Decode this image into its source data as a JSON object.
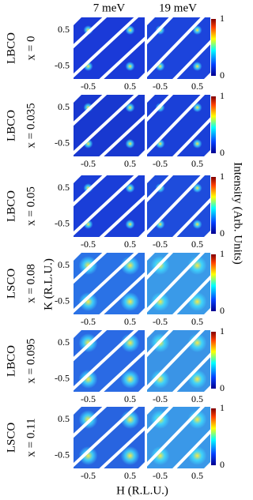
{
  "columns": [
    "7 meV",
    "19 meV"
  ],
  "rows": [
    {
      "material": "LBCO",
      "doping": "x = 0"
    },
    {
      "material": "LBCO",
      "doping": "x = 0.035"
    },
    {
      "material": "LBCO",
      "doping": "x = 0.05"
    },
    {
      "material": "LSCO",
      "doping": "x = 0.08"
    },
    {
      "material": "LBCO",
      "doping": "x = 0.095"
    },
    {
      "material": "LSCO",
      "doping": "x = 0.11"
    }
  ],
  "hticks": [
    -0.5,
    0.5
  ],
  "kticks": [
    -0.5,
    0.5
  ],
  "hlim": [
    -0.85,
    0.85
  ],
  "klim": [
    -0.85,
    0.85
  ],
  "colorbar": {
    "lim": [
      0,
      1
    ],
    "ticks": [
      0,
      1
    ],
    "label": "Intensity (Arb. Units)"
  },
  "xlabel": "H (R.L.U.)",
  "ylabel": "K (R.L.U.)"
}
